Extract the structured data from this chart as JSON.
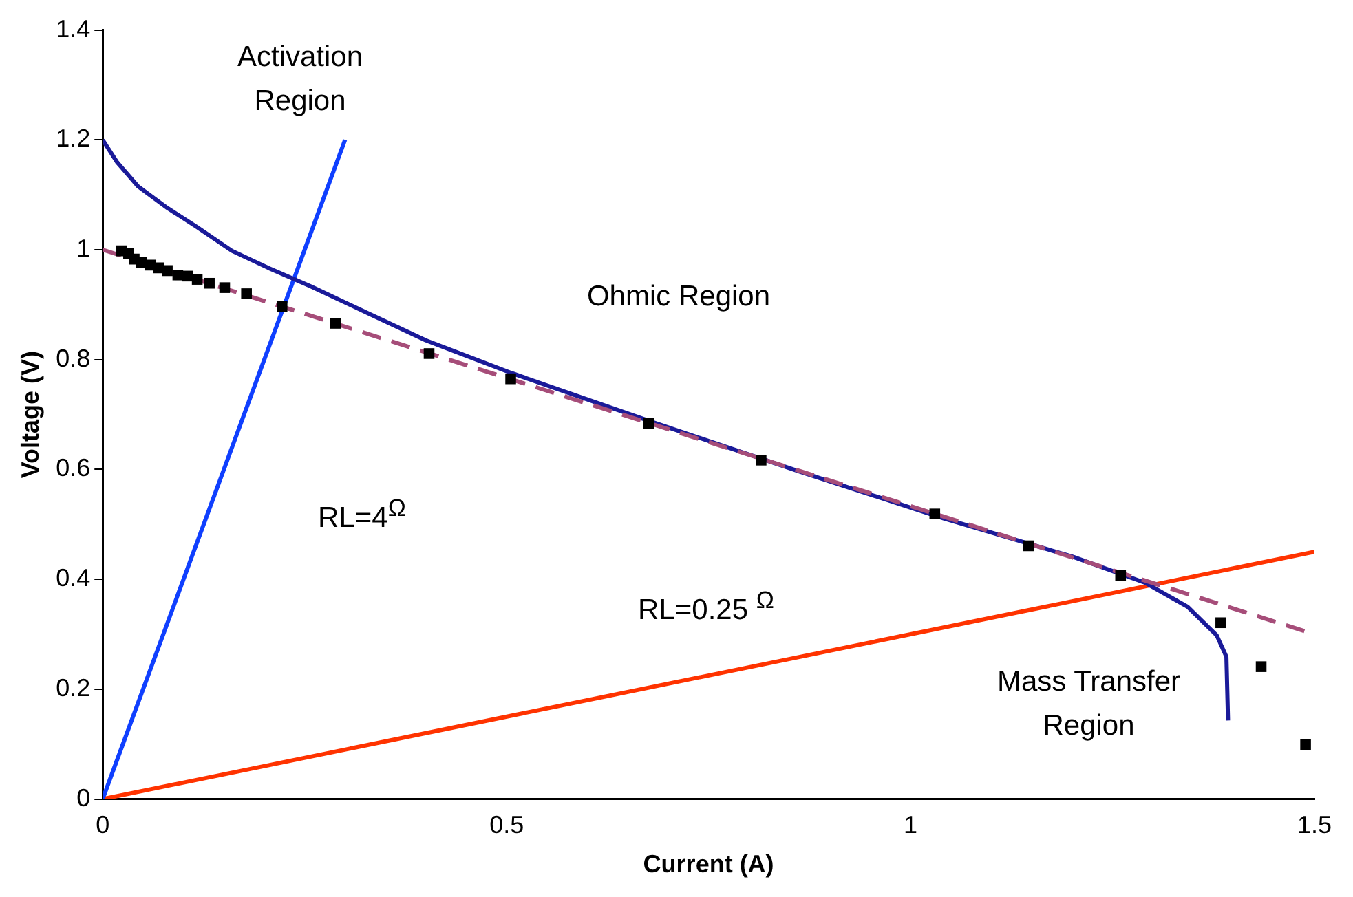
{
  "chart_data": {
    "type": "scatter",
    "xlabel": "Current (A)",
    "ylabel": "Voltage (V)",
    "xlim": [
      0,
      1.5
    ],
    "xticks": [
      0,
      0.5,
      1,
      1.5
    ],
    "ylim": [
      0,
      1.4
    ],
    "yticks": [
      0,
      0.2,
      0.4,
      0.6,
      0.8,
      1,
      1.2,
      1.4
    ],
    "grid": false,
    "legend": false,
    "annotations": [
      "Activation Region",
      "Ohmic Region",
      "RL=4$^{Ω}$",
      "RL=0.25 $^{Ω}$",
      "Mass Transfer Region"
    ],
    "series": [
      {
        "marker": "square",
        "color": "#000000",
        "x": [
          0.023,
          0.032,
          0.039,
          0.048,
          0.059,
          0.069,
          0.08,
          0.093,
          0.105,
          0.117,
          0.132,
          0.151,
          0.178,
          0.222,
          0.288,
          0.404,
          0.505,
          0.676,
          0.815,
          1.03,
          1.146,
          1.26,
          1.384,
          1.434,
          1.489
        ],
        "values": [
          0.998,
          0.993,
          0.983,
          0.977,
          0.972,
          0.967,
          0.962,
          0.954,
          0.952,
          0.946,
          0.939,
          0.931,
          0.92,
          0.897,
          0.866,
          0.811,
          0.765,
          0.684,
          0.617,
          0.519,
          0.461,
          0.407,
          0.321,
          0.241,
          0.099
        ]
      },
      {
        "type": "line",
        "line_style": "dashed",
        "color": "#a64d79",
        "x": [
          0,
          1.5
        ],
        "values": [
          1.0,
          0.3
        ]
      },
      {
        "type": "line",
        "line_style": "solid",
        "color": "#1a1a99",
        "x": [
          0,
          0.018,
          0.044,
          0.08,
          0.116,
          0.16,
          0.205,
          0.258,
          0.329,
          0.4,
          0.507,
          0.685,
          0.863,
          1.041,
          1.201,
          1.29,
          1.343,
          1.379,
          1.391,
          1.393
        ],
        "values": [
          1.2,
          1.159,
          1.115,
          1.076,
          1.042,
          0.998,
          0.967,
          0.933,
          0.884,
          0.835,
          0.775,
          0.684,
          0.596,
          0.511,
          0.441,
          0.394,
          0.35,
          0.298,
          0.259,
          0.143
        ]
      },
      {
        "type": "line",
        "line_style": "solid",
        "color": "#0f3fff",
        "x": [
          0,
          0.3
        ],
        "values": [
          0,
          1.2
        ]
      },
      {
        "type": "line",
        "line_style": "solid",
        "color": "#ff3300",
        "x": [
          0,
          1.5
        ],
        "values": [
          0,
          0.45
        ]
      }
    ]
  }
}
